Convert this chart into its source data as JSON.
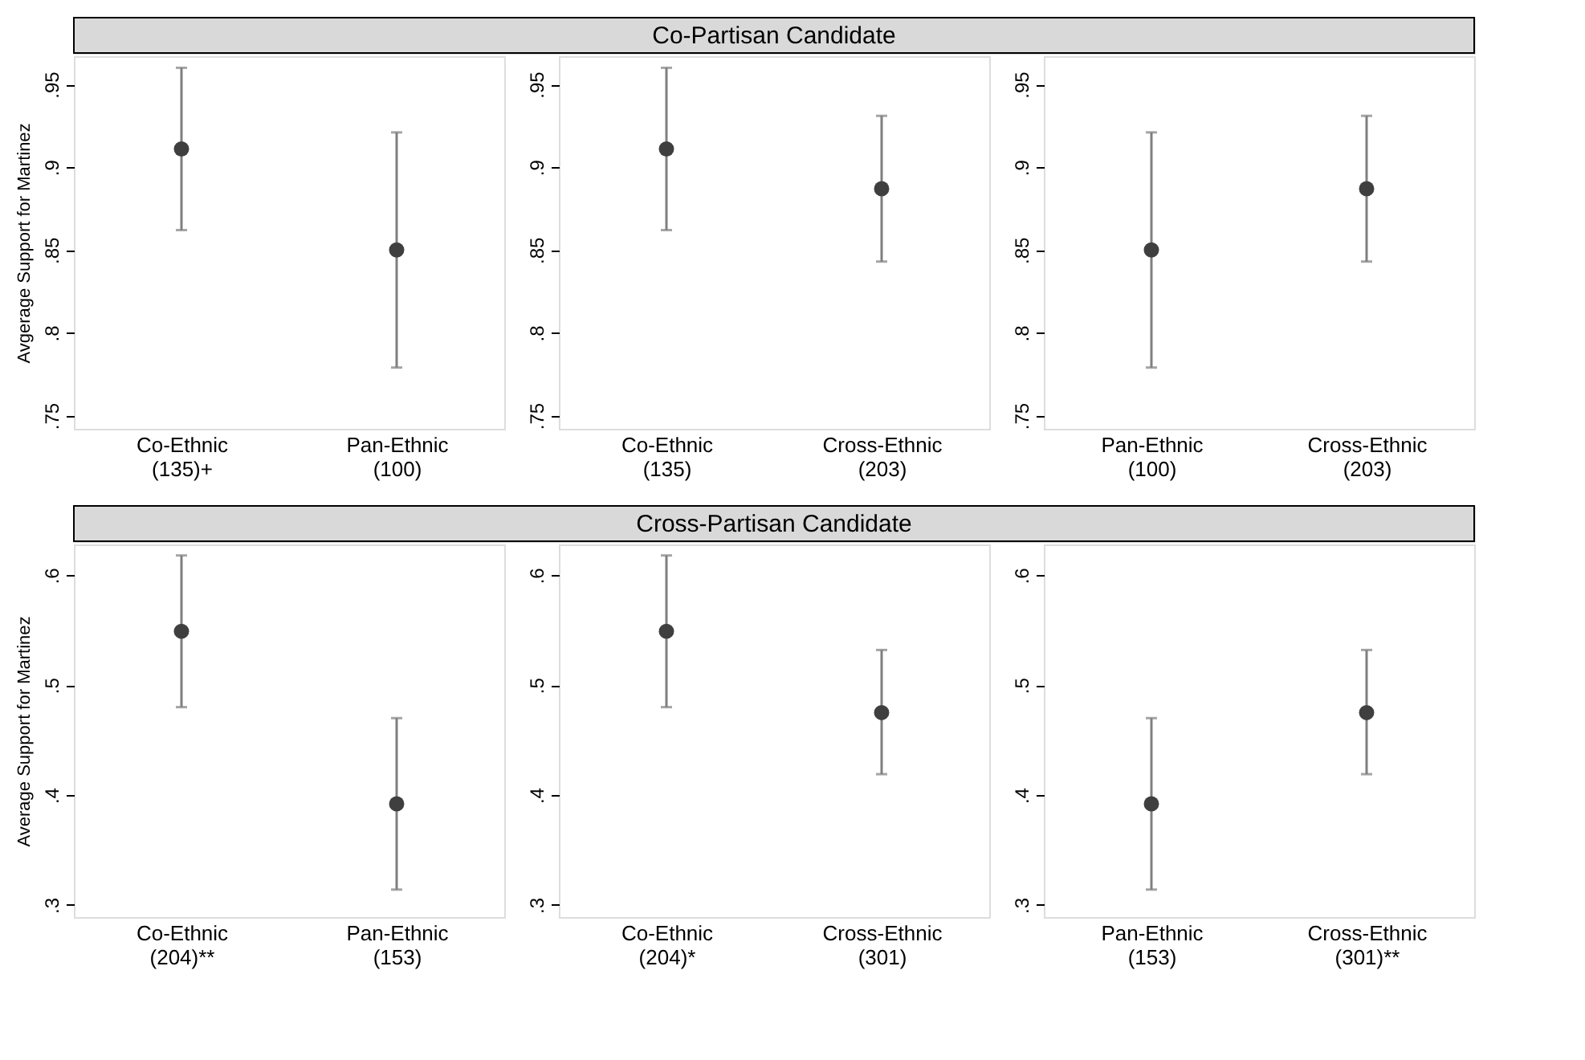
{
  "chart_data": [
    {
      "type": "scatter",
      "ylabel": "Avgerage Support for Martinez",
      "categories": [
        "Co-Ethnic\n(135)+",
        "Pan-Ethnic\n(100)"
      ],
      "ylim": [
        0.742,
        0.967
      ],
      "yticks": [
        {
          "value": 0.75,
          "label": ".75"
        },
        {
          "value": 0.8,
          "label": ".8"
        },
        {
          "value": 0.85,
          "label": ".85"
        },
        {
          "value": 0.9,
          "label": ".9"
        },
        {
          "value": 0.95,
          "label": ".95"
        }
      ],
      "marker": "circle",
      "grid": false,
      "series": [
        {
          "color": "#3f3f3f",
          "values": [
            0.911,
            0.85
          ],
          "errors": [
            [
              0.862,
              0.96
            ],
            [
              0.779,
              0.921
            ]
          ]
        }
      ]
    },
    {
      "type": "scatter",
      "title": "Co-Partisan Candidate",
      "categories": [
        "Co-Ethnic\n(135)",
        "Cross-Ethnic\n(203)"
      ],
      "ylim": [
        0.742,
        0.967
      ],
      "yticks": [
        {
          "value": 0.75,
          "label": ".75"
        },
        {
          "value": 0.8,
          "label": ".8"
        },
        {
          "value": 0.85,
          "label": ".85"
        },
        {
          "value": 0.9,
          "label": ".9"
        },
        {
          "value": 0.95,
          "label": ".95"
        }
      ],
      "marker": "circle",
      "grid": false,
      "series": [
        {
          "color": "#3f3f3f",
          "values": [
            0.911,
            0.887
          ],
          "errors": [
            [
              0.862,
              0.96
            ],
            [
              0.843,
              0.931
            ]
          ]
        }
      ]
    },
    {
      "type": "scatter",
      "categories": [
        "Pan-Ethnic\n(100)",
        "Cross-Ethnic\n(203)"
      ],
      "ylim": [
        0.742,
        0.967
      ],
      "yticks": [
        {
          "value": 0.75,
          "label": ".75"
        },
        {
          "value": 0.8,
          "label": ".8"
        },
        {
          "value": 0.85,
          "label": ".85"
        },
        {
          "value": 0.9,
          "label": ".9"
        },
        {
          "value": 0.95,
          "label": ".95"
        }
      ],
      "marker": "circle",
      "grid": false,
      "series": [
        {
          "color": "#3f3f3f",
          "values": [
            0.85,
            0.887
          ],
          "errors": [
            [
              0.779,
              0.921
            ],
            [
              0.843,
              0.931
            ]
          ]
        }
      ]
    },
    {
      "type": "scatter",
      "ylabel": "Average Support for Martinez",
      "categories": [
        "Co-Ethnic\n(204)**",
        "Pan-Ethnic\n(153)"
      ],
      "ylim": [
        0.289,
        0.628
      ],
      "yticks": [
        {
          "value": 0.3,
          "label": ".3"
        },
        {
          "value": 0.4,
          "label": ".4"
        },
        {
          "value": 0.5,
          "label": ".5"
        },
        {
          "value": 0.6,
          "label": ".6"
        }
      ],
      "marker": "circle",
      "grid": false,
      "series": [
        {
          "color": "#3f3f3f",
          "values": [
            0.549,
            0.392
          ],
          "errors": [
            [
              0.48,
              0.618
            ],
            [
              0.314,
              0.47
            ]
          ]
        }
      ]
    },
    {
      "type": "scatter",
      "title": "Cross-Partisan Candidate",
      "categories": [
        "Co-Ethnic\n(204)*",
        "Cross-Ethnic\n(301)"
      ],
      "ylim": [
        0.289,
        0.628
      ],
      "yticks": [
        {
          "value": 0.3,
          "label": ".3"
        },
        {
          "value": 0.4,
          "label": ".4"
        },
        {
          "value": 0.5,
          "label": ".5"
        },
        {
          "value": 0.6,
          "label": ".6"
        }
      ],
      "marker": "circle",
      "grid": false,
      "series": [
        {
          "color": "#3f3f3f",
          "values": [
            0.549,
            0.475
          ],
          "errors": [
            [
              0.48,
              0.618
            ],
            [
              0.419,
              0.532
            ]
          ]
        }
      ]
    },
    {
      "type": "scatter",
      "categories": [
        "Pan-Ethnic\n(153)",
        "Cross-Ethnic\n(301)**"
      ],
      "ylim": [
        0.289,
        0.628
      ],
      "yticks": [
        {
          "value": 0.3,
          "label": ".3"
        },
        {
          "value": 0.4,
          "label": ".4"
        },
        {
          "value": 0.5,
          "label": ".5"
        },
        {
          "value": 0.6,
          "label": ".6"
        }
      ],
      "marker": "circle",
      "grid": false,
      "series": [
        {
          "color": "#3f3f3f",
          "values": [
            0.392,
            0.475
          ],
          "errors": [
            [
              0.314,
              0.47
            ],
            [
              0.419,
              0.532
            ]
          ]
        }
      ]
    }
  ]
}
